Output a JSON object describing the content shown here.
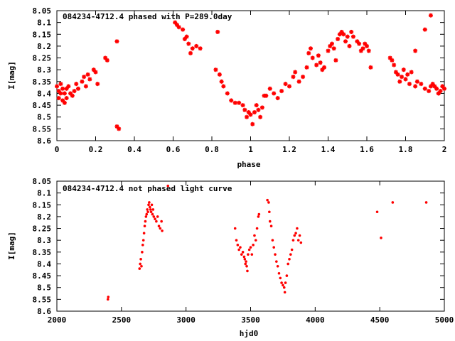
{
  "chart_data": [
    {
      "type": "scatter",
      "title": "084234-4712.4 phased with P=289.0day",
      "xlabel": "phase",
      "ylabel": "I[mag]",
      "xlim": [
        0,
        2
      ],
      "ylim": [
        8.6,
        8.05
      ],
      "y_inverted": true,
      "xticks": [
        0,
        0.2,
        0.4,
        0.6,
        0.8,
        1,
        1.2,
        1.4,
        1.6,
        1.8,
        2
      ],
      "xtick_labels": [
        "0",
        "0.2",
        "0.4",
        "0.6",
        "0.8",
        "1",
        "1.2",
        "1.4",
        "1.6",
        "1.8",
        "2"
      ],
      "yticks": [
        8.05,
        8.1,
        8.15,
        8.2,
        8.25,
        8.3,
        8.35,
        8.4,
        8.45,
        8.5,
        8.55,
        8.6
      ],
      "ytick_labels": [
        "8.05",
        "8.1",
        "8.15",
        "8.2",
        "8.25",
        "8.3",
        "8.35",
        "8.4",
        "8.45",
        "8.5",
        "8.55",
        "8.6"
      ],
      "grid": false,
      "marker": "star",
      "color": "#ff0000",
      "x": [
        0.0,
        0.01,
        0.01,
        0.02,
        0.02,
        0.03,
        0.03,
        0.04,
        0.04,
        0.05,
        0.05,
        0.06,
        0.07,
        0.08,
        0.09,
        0.1,
        0.11,
        0.13,
        0.14,
        0.15,
        0.16,
        0.17,
        0.19,
        0.2,
        0.21,
        0.25,
        0.26,
        0.31,
        0.32,
        0.31,
        0.61,
        0.62,
        0.63,
        0.65,
        0.66,
        0.67,
        0.68,
        0.69,
        0.7,
        0.72,
        0.74,
        0.82,
        0.83,
        0.84,
        0.85,
        0.86,
        0.88,
        0.9,
        0.92,
        0.94,
        0.96,
        0.97,
        0.98,
        0.99,
        1.0,
        1.01,
        1.02,
        1.03,
        1.04,
        1.05,
        1.06,
        1.07,
        1.08,
        1.1,
        1.12,
        1.14,
        1.16,
        1.18,
        1.2,
        1.22,
        1.23,
        1.25,
        1.27,
        1.29,
        1.3,
        1.31,
        1.32,
        1.34,
        1.35,
        1.36,
        1.37,
        1.38,
        1.4,
        1.41,
        1.42,
        1.43,
        1.44,
        1.45,
        1.46,
        1.47,
        1.48,
        1.49,
        1.5,
        1.51,
        1.52,
        1.53,
        1.55,
        1.56,
        1.57,
        1.58,
        1.59,
        1.6,
        1.61,
        1.62,
        1.72,
        1.73,
        1.74,
        1.75,
        1.76,
        1.77,
        1.78,
        1.79,
        1.8,
        1.81,
        1.82,
        1.83,
        1.85,
        1.86,
        1.88,
        1.9,
        1.92,
        1.93,
        1.94,
        1.95,
        1.96,
        1.97,
        1.98,
        1.99,
        2.0,
        1.85,
        1.9,
        1.93,
        1.97
      ],
      "y": [
        8.37,
        8.39,
        8.42,
        8.36,
        8.4,
        8.38,
        8.43,
        8.4,
        8.44,
        8.38,
        8.42,
        8.37,
        8.4,
        8.41,
        8.39,
        8.36,
        8.38,
        8.35,
        8.33,
        8.37,
        8.32,
        8.34,
        8.3,
        8.31,
        8.36,
        8.25,
        8.26,
        8.18,
        8.55,
        8.54,
        8.1,
        8.11,
        8.12,
        8.13,
        8.17,
        8.16,
        8.19,
        8.23,
        8.21,
        8.2,
        8.21,
        8.3,
        8.14,
        8.32,
        8.35,
        8.37,
        8.4,
        8.43,
        8.44,
        8.44,
        8.45,
        8.47,
        8.5,
        8.48,
        8.49,
        8.53,
        8.48,
        8.45,
        8.47,
        8.5,
        8.46,
        8.41,
        8.41,
        8.38,
        8.4,
        8.42,
        8.39,
        8.36,
        8.37,
        8.33,
        8.31,
        8.35,
        8.33,
        8.29,
        8.23,
        8.21,
        8.25,
        8.28,
        8.24,
        8.27,
        8.3,
        8.29,
        8.22,
        8.2,
        8.19,
        8.21,
        8.26,
        8.17,
        8.15,
        8.14,
        8.15,
        8.18,
        8.16,
        8.2,
        8.14,
        8.16,
        8.18,
        8.19,
        8.22,
        8.21,
        8.19,
        8.2,
        8.22,
        8.29,
        8.25,
        8.26,
        8.28,
        8.31,
        8.32,
        8.35,
        8.33,
        8.3,
        8.34,
        8.32,
        8.36,
        8.31,
        8.37,
        8.35,
        8.36,
        8.38,
        8.39,
        8.37,
        8.36,
        8.37,
        8.38,
        8.4,
        8.39,
        8.37,
        8.38,
        8.22,
        8.13,
        8.07,
        8.4
      ]
    },
    {
      "type": "scatter",
      "title": "084234-4712.4 not phased light curve",
      "xlabel": "hjd0",
      "ylabel": "I[mag]",
      "xlim": [
        2000,
        5000
      ],
      "ylim": [
        8.6,
        8.05
      ],
      "y_inverted": true,
      "xticks": [
        2000,
        2500,
        3000,
        3500,
        4000,
        4500,
        5000
      ],
      "xtick_labels": [
        "2000",
        "2500",
        "3000",
        "3500",
        "4000",
        "4500",
        "5000"
      ],
      "yticks": [
        8.05,
        8.1,
        8.15,
        8.2,
        8.25,
        8.3,
        8.35,
        8.4,
        8.45,
        8.5,
        8.55,
        8.6
      ],
      "ytick_labels": [
        "8.05",
        "8.1",
        "8.15",
        "8.2",
        "8.25",
        "8.3",
        "8.35",
        "8.4",
        "8.45",
        "8.5",
        "8.55",
        "8.6"
      ],
      "grid": false,
      "marker": "dot",
      "color": "#ff0000",
      "x": [
        2395,
        2398,
        2640,
        2645,
        2650,
        2655,
        2660,
        2665,
        2670,
        2675,
        2680,
        2685,
        2690,
        2695,
        2700,
        2705,
        2710,
        2715,
        2720,
        2725,
        2730,
        2735,
        2740,
        2745,
        2750,
        2760,
        2770,
        2780,
        2790,
        2800,
        2810,
        2815,
        3380,
        3390,
        3400,
        3410,
        3420,
        3430,
        3440,
        3450,
        3455,
        3460,
        3465,
        3470,
        3475,
        3480,
        3490,
        3500,
        3510,
        3520,
        3530,
        3540,
        3550,
        3560,
        3565,
        3630,
        3640,
        3645,
        3650,
        3660,
        3670,
        3680,
        3690,
        3700,
        3710,
        3720,
        3730,
        3740,
        3750,
        3760,
        3765,
        3770,
        3780,
        3790,
        3800,
        3810,
        3820,
        3830,
        3840,
        3850,
        3860,
        3870,
        3880,
        3890,
        4480,
        4510,
        4600,
        4860,
        2860
      ],
      "y": [
        8.55,
        8.54,
        8.42,
        8.4,
        8.38,
        8.41,
        8.35,
        8.32,
        8.3,
        8.27,
        8.24,
        8.22,
        8.2,
        8.19,
        8.17,
        8.18,
        8.15,
        8.14,
        8.16,
        8.17,
        8.18,
        8.15,
        8.19,
        8.17,
        8.2,
        8.21,
        8.22,
        8.2,
        8.24,
        8.25,
        8.22,
        8.26,
        8.25,
        8.3,
        8.32,
        8.34,
        8.33,
        8.36,
        8.35,
        8.37,
        8.38,
        8.4,
        8.39,
        8.41,
        8.43,
        8.36,
        8.34,
        8.33,
        8.36,
        8.32,
        8.28,
        8.3,
        8.25,
        8.2,
        8.19,
        8.13,
        8.14,
        8.18,
        8.22,
        8.24,
        8.3,
        8.33,
        8.36,
        8.39,
        8.41,
        8.44,
        8.46,
        8.48,
        8.49,
        8.5,
        8.52,
        8.48,
        8.45,
        8.4,
        8.38,
        8.36,
        8.34,
        8.3,
        8.28,
        8.27,
        8.25,
        8.3,
        8.28,
        8.31,
        8.18,
        8.29,
        8.14,
        8.14,
        8.07
      ]
    }
  ]
}
